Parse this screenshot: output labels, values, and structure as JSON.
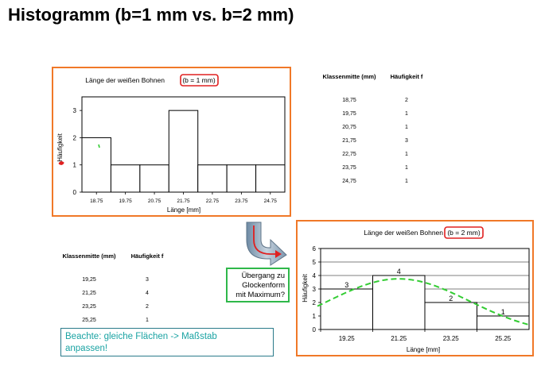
{
  "page": {
    "title": "Histogramm (b=1 mm vs. b=2 mm)"
  },
  "colors": {
    "frame": "#f07828",
    "annotation_red": "#e02020",
    "fit_curve": "#33cc33",
    "note_text": "#1aa3a3",
    "green_box": "#2fb84a"
  },
  "chart_data": [
    {
      "type": "bar",
      "title": "Länge der weißen Bohnen (b = 1 mm)",
      "title_main": "Länge der weißen Bohnen",
      "title_highlight": "(b = 1 mm)",
      "xlabel": "Länge [mm]",
      "ylabel": "Häufigkeit",
      "categories": [
        "18.75",
        "19.75",
        "20.75",
        "21.75",
        "22.75",
        "23.75",
        "24.75"
      ],
      "values": [
        2,
        1,
        1,
        3,
        1,
        1,
        1
      ],
      "yticks": [
        0,
        1,
        2,
        3
      ],
      "ylim": [
        0,
        3.5
      ],
      "grid": false,
      "legend": "none"
    },
    {
      "type": "bar",
      "title": "Länge der weißen Bohnen (b = 2 mm)",
      "title_main": "Länge der weißen Bohnen",
      "title_highlight": "(b = 2 mm)",
      "xlabel": "Länge [mm]",
      "ylabel": "Häufigkeit",
      "categories": [
        "19.25",
        "21.25",
        "23.25",
        "25.25"
      ],
      "values": [
        3,
        4,
        2,
        1
      ],
      "data_labels": [
        "3",
        "4",
        "2",
        "1"
      ],
      "yticks": [
        0,
        1,
        2,
        3,
        4,
        5,
        6
      ],
      "ylim": [
        0,
        6
      ],
      "grid": "horizontal",
      "legend": "none",
      "overlay": "dashed green bell-shaped curve with maximum near 21.25"
    }
  ],
  "table1": {
    "headers": [
      "Klassenmitte (mm)",
      "Häufigkeit f"
    ],
    "rows": [
      [
        "18,75",
        "2"
      ],
      [
        "19,75",
        "1"
      ],
      [
        "20,75",
        "1"
      ],
      [
        "21,75",
        "3"
      ],
      [
        "22,75",
        "1"
      ],
      [
        "23,75",
        "1"
      ],
      [
        "24,75",
        "1"
      ]
    ]
  },
  "table2": {
    "headers": [
      "Klassenmitte (mm)",
      "Häufigkeit f"
    ],
    "rows": [
      [
        "19,25",
        "3"
      ],
      [
        "21,25",
        "4"
      ],
      [
        "23,25",
        "2"
      ],
      [
        "25,25",
        "1"
      ]
    ]
  },
  "callout": {
    "lines": [
      "Übergang zu",
      "Glockenform",
      "mit Maximum?"
    ]
  },
  "note": {
    "lines": [
      "Beachte: gleiche Flächen -> Maßstab",
      "anpassen!"
    ]
  }
}
